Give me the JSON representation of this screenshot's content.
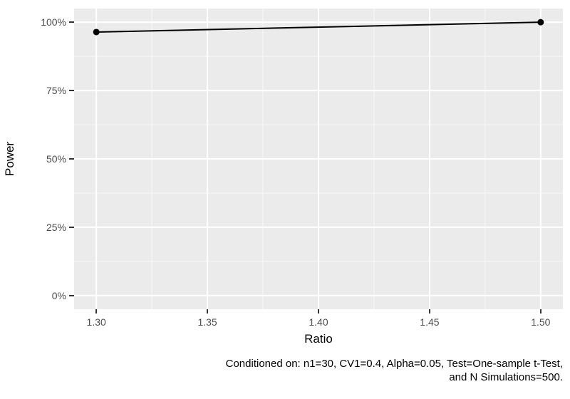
{
  "chart_data": {
    "type": "line",
    "title": "",
    "xlabel": "Ratio",
    "ylabel": "Power",
    "x": [
      1.3,
      1.5
    ],
    "series": [
      {
        "name": "Power",
        "values": [
          0.964,
          1.0
        ]
      }
    ],
    "x_ticks": [
      1.3,
      1.35,
      1.4,
      1.45,
      1.5
    ],
    "x_tick_labels": [
      "1.30",
      "1.35",
      "1.40",
      "1.45",
      "1.50"
    ],
    "y_ticks": [
      0,
      0.25,
      0.5,
      0.75,
      1.0
    ],
    "y_tick_labels": [
      "0%",
      "25%",
      "50%",
      "75%",
      "100%"
    ],
    "xlim": [
      1.29,
      1.51
    ],
    "ylim": [
      -0.05,
      1.05
    ],
    "grid": "major+minor",
    "legend": "none",
    "caption_line1": "Conditioned on: n1=30, CV1=0.4, Alpha=0.05, Test=One-sample t-Test,",
    "caption_line2": "and N Simulations=500.",
    "style": {
      "panel_bg": "#EBEBEB",
      "grid_major_color": "#FFFFFF",
      "grid_minor_color": "#F6F6F6",
      "line_color": "#000000",
      "point_color": "#000000",
      "tick_label_color": "#4D4D4D",
      "tick_mark_color": "#333333",
      "axis_title_color": "#000000",
      "caption_color": "#000000"
    }
  }
}
